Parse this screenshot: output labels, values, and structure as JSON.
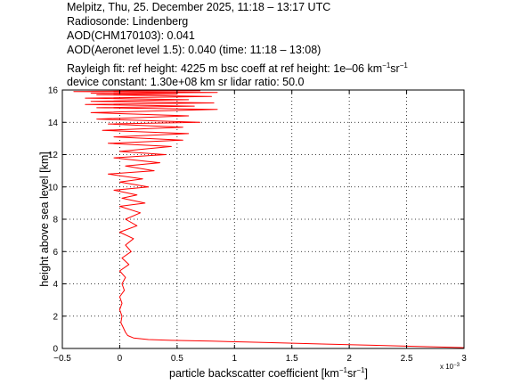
{
  "header": {
    "line1": "Melpitz, Thu, 25. December 2025, 11:18 – 13:17 UTC",
    "line2": "Radiosonde: Lindenberg",
    "line3": "AOD(CHM170103): 0.041",
    "line4": "AOD(Aeronet level 1.5): 0.040   (time: 11:18 – 13:08)",
    "line5_prefix": "Rayleigh fit:     ref height: 4225 m     bsc coeff at ref height: 1e–06 km",
    "line5_sup1": "−1",
    "line5_mid": "sr",
    "line5_sup2": "−1",
    "line6": "device constant: 1.30e+08 km sr     lidar ratio: 50.0"
  },
  "chart_data": {
    "type": "line",
    "xlabel_main": "particle backscatter coefficient [km",
    "xlabel_sup1": "−1",
    "xlabel_mid": "sr",
    "xlabel_sup2": "−1",
    "xlabel_end": "]",
    "ylabel": "height above sea level [km]",
    "x_exponent_label": "x 10",
    "x_exponent_sup": "−3",
    "xlim": [
      -0.5,
      3
    ],
    "ylim": [
      0,
      16
    ],
    "grid": true,
    "x_ticks": [
      -0.5,
      0,
      0.5,
      1,
      1.5,
      2,
      2.5,
      3
    ],
    "x_tick_labels": [
      "−0.5",
      "0",
      "0.5",
      "1",
      "1.5",
      "2",
      "2.5",
      "3"
    ],
    "y_ticks": [
      0,
      2,
      4,
      6,
      8,
      10,
      12,
      14,
      16
    ],
    "y_tick_labels": [
      "0",
      "2",
      "4",
      "6",
      "8",
      "10",
      "12",
      "14",
      "16"
    ],
    "series": [
      {
        "color": "#ff0000",
        "x": [
          3.0,
          2.6,
          2.2,
          1.8,
          1.4,
          1.1,
          0.8,
          0.45,
          0.25,
          0.12,
          0.07,
          0.05,
          0.03,
          0.01,
          0.02,
          0.0,
          0.02,
          0.0,
          0.04,
          0.02,
          0.05,
          0.0,
          0.08,
          0.02,
          0.1,
          0.05,
          0.12,
          0.0,
          0.15,
          0.05,
          0.18,
          0.0,
          0.22,
          0.02,
          0.15,
          -0.05,
          0.25,
          0.0,
          0.2,
          -0.1,
          0.3,
          0.05,
          0.35,
          -0.05,
          0.4,
          0.0,
          0.45,
          -0.1,
          0.55,
          -0.05,
          0.6,
          -0.15,
          0.55,
          -0.1,
          0.7,
          -0.2,
          0.6,
          -0.25,
          0.85,
          -0.2,
          0.65,
          -0.3,
          0.82,
          -0.25,
          0.6,
          -0.3,
          0.8,
          -0.2,
          0.5,
          -0.25,
          0.85,
          -0.4,
          0.7,
          -0.3,
          0.6
        ],
        "y": [
          0.05,
          0.12,
          0.2,
          0.27,
          0.35,
          0.4,
          0.45,
          0.5,
          0.55,
          0.65,
          0.8,
          1.0,
          1.3,
          1.6,
          2.0,
          2.4,
          2.8,
          3.2,
          3.6,
          4.0,
          4.4,
          4.8,
          5.2,
          5.6,
          6.0,
          6.4,
          6.8,
          7.2,
          7.6,
          8.0,
          8.4,
          8.8,
          9.0,
          9.3,
          9.5,
          9.8,
          10.0,
          10.3,
          10.5,
          10.8,
          11.0,
          11.3,
          11.5,
          11.8,
          12.0,
          12.2,
          12.5,
          12.7,
          12.9,
          13.1,
          13.3,
          13.5,
          13.7,
          13.9,
          14.0,
          14.2,
          14.4,
          14.6,
          14.8,
          14.9,
          15.0,
          15.1,
          15.2,
          15.3,
          15.4,
          15.5,
          15.6,
          15.7,
          15.75,
          15.8,
          15.85,
          15.9,
          15.95,
          16.0,
          16.0
        ]
      }
    ]
  }
}
